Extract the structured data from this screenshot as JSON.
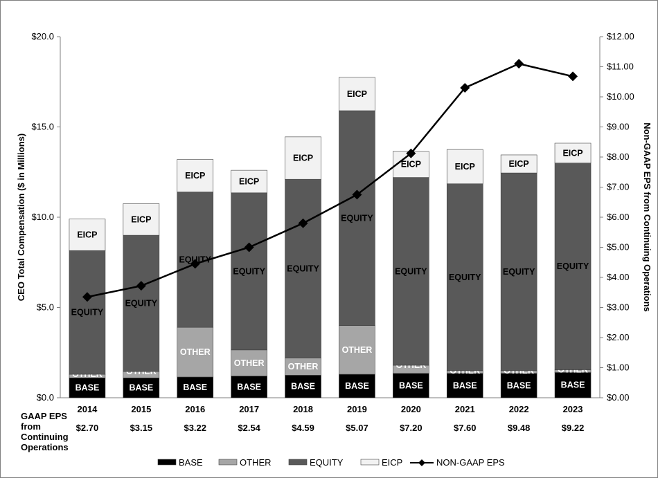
{
  "chart_data": {
    "type": "bar",
    "stacked": true,
    "categories": [
      "2014",
      "2015",
      "2016",
      "2017",
      "2018",
      "2019",
      "2020",
      "2021",
      "2022",
      "2023"
    ],
    "series": [
      {
        "name": "BASE",
        "label": "BASE",
        "color": "#000000",
        "text_color": "#ffffff",
        "values": [
          1.1,
          1.1,
          1.15,
          1.2,
          1.25,
          1.3,
          1.35,
          1.35,
          1.35,
          1.4
        ]
      },
      {
        "name": "OTHER",
        "label": "OTHER",
        "color": "#a6a6a6",
        "text_color": "#ffffff",
        "values": [
          0.2,
          0.35,
          2.75,
          1.45,
          0.95,
          2.7,
          0.45,
          0.15,
          0.15,
          0.15
        ]
      },
      {
        "name": "EQUITY",
        "label": "EQUITY",
        "color": "#595959",
        "text_color": "#000000",
        "values": [
          6.85,
          7.55,
          7.5,
          8.7,
          9.9,
          11.9,
          10.4,
          10.35,
          10.95,
          11.45
        ]
      },
      {
        "name": "EICP",
        "label": "EICP",
        "color": "#f2f2f2",
        "text_color": "#000000",
        "values": [
          1.75,
          1.75,
          1.8,
          1.25,
          2.35,
          1.85,
          1.45,
          1.9,
          1.0,
          1.1
        ]
      }
    ],
    "line": {
      "name": "NON-GAAP EPS",
      "values": [
        3.35,
        3.72,
        4.45,
        5.0,
        5.8,
        6.75,
        8.12,
        10.3,
        11.1,
        10.68
      ]
    },
    "title": "",
    "ylabel": "CEO Total Compensation ($ in Millions)",
    "ylim": [
      0,
      20
    ],
    "yticks": [
      "$0.0",
      "$5.0",
      "$10.0",
      "$15.0",
      "$20.0"
    ],
    "y2label": "Non-GAAP EPS from Continuing Operations",
    "y2lim": [
      0,
      12
    ],
    "y2ticks": [
      "$0.00",
      "$1.00",
      "$2.00",
      "$3.00",
      "$4.00",
      "$5.00",
      "$6.00",
      "$7.00",
      "$8.00",
      "$9.00",
      "$10.00",
      "$11.00",
      "$12.00"
    ],
    "legend": [
      "BASE",
      "OTHER",
      "EQUITY",
      "EICP",
      "NON-GAAP EPS"
    ],
    "legend_position": "bottom"
  },
  "eps_table": {
    "label_lines": [
      "GAAP EPS",
      "from",
      "Continuing",
      "Operations"
    ],
    "values": [
      "$2.70",
      "$3.15",
      "$3.22",
      "$2.54",
      "$4.59",
      "$5.07",
      "$7.20",
      "$7.60",
      "$9.48",
      "$9.22"
    ]
  }
}
